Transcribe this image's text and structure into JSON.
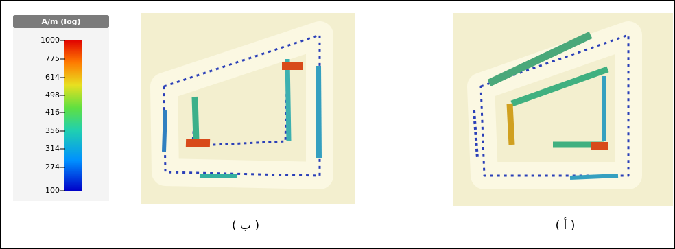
{
  "colorbar": {
    "title": "A/m (log)",
    "labels": [
      "1000",
      "775",
      "614",
      "498",
      "416",
      "356",
      "314",
      "274",
      "100"
    ]
  },
  "panels": [
    {
      "caption": "( ب )"
    },
    {
      "caption": "( أ )"
    }
  ]
}
